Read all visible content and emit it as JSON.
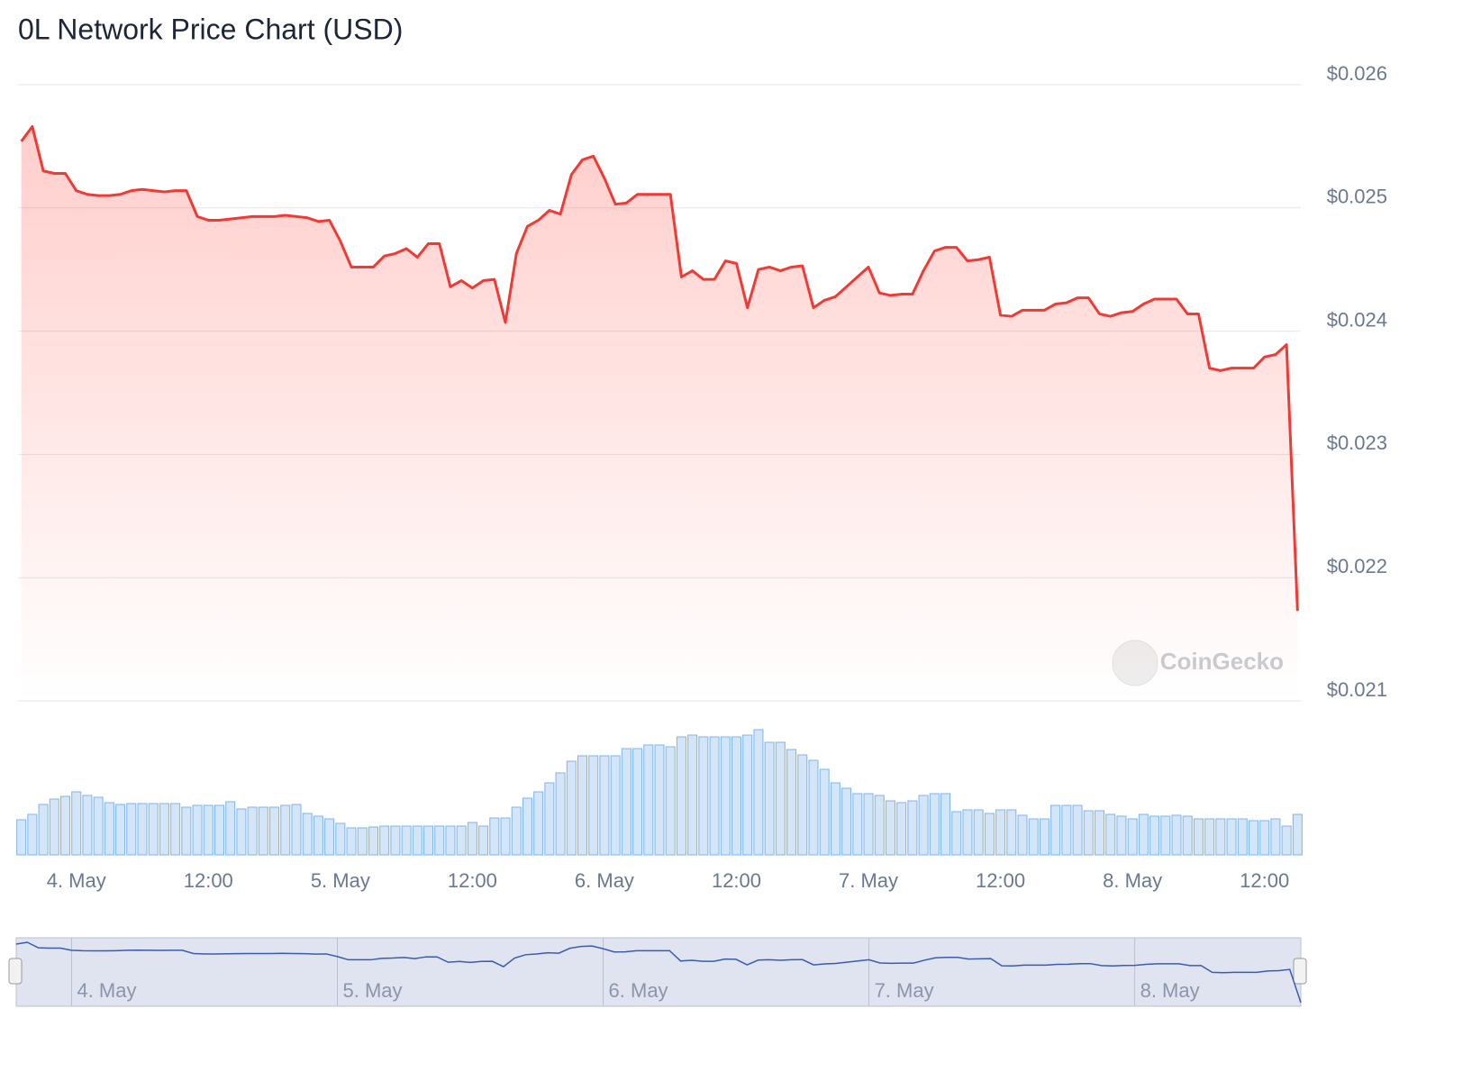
{
  "chart_data": {
    "type": "line",
    "title": "0L Network Price Chart (USD)",
    "watermark": "CoinGecko",
    "x": [
      -5,
      -4,
      -3,
      -2,
      -1,
      0,
      1,
      2,
      3,
      4,
      5,
      6,
      7,
      8,
      9,
      10,
      11,
      12,
      13,
      14,
      15,
      16,
      17,
      18,
      19,
      20,
      21,
      22,
      23,
      24,
      25,
      26,
      27,
      28,
      29,
      30,
      31,
      32,
      33,
      34,
      35,
      36,
      37,
      38,
      39,
      40,
      41,
      42,
      43,
      44,
      45,
      46,
      47,
      48,
      49,
      50,
      51,
      52,
      53,
      54,
      55,
      56,
      57,
      58,
      59,
      60,
      61,
      62,
      63,
      64,
      65,
      66,
      67,
      68,
      69,
      70,
      71,
      72,
      73,
      74,
      75,
      76,
      77,
      78,
      79,
      80,
      81,
      82,
      83,
      84,
      85,
      86,
      87,
      88,
      89,
      90,
      91,
      92,
      93,
      94,
      95,
      96,
      97,
      98,
      99,
      100,
      101,
      102,
      103,
      104,
      105,
      106,
      107,
      108,
      109,
      110,
      111
    ],
    "series": [
      {
        "color": "#f23a35",
        "values": [
          0.02554,
          0.02566,
          0.0253,
          0.02528,
          0.02528,
          0.02514,
          0.02511,
          0.0251,
          0.0251,
          0.02511,
          0.02514,
          0.02515,
          0.02514,
          0.02513,
          0.02514,
          0.02514,
          0.02493,
          0.0249,
          0.0249,
          0.02491,
          0.02492,
          0.02493,
          0.02493,
          0.02493,
          0.02494,
          0.02493,
          0.02492,
          0.02489,
          0.0249,
          0.02473,
          0.02452,
          0.02452,
          0.02452,
          0.02461,
          0.02463,
          0.02467,
          0.0246,
          0.02471,
          0.02471,
          0.02436,
          0.02441,
          0.02435,
          0.02441,
          0.02442,
          0.02407,
          0.02463,
          0.02485,
          0.0249,
          0.02498,
          0.02495,
          0.02527,
          0.02539,
          0.02542,
          0.02524,
          0.02503,
          0.02504,
          0.02511,
          0.02511,
          0.02511,
          0.02511,
          0.02444,
          0.02449,
          0.02442,
          0.02442,
          0.02457,
          0.02455,
          0.02419,
          0.0245,
          0.02452,
          0.02449,
          0.02452,
          0.02453,
          0.02419,
          0.02425,
          0.02428,
          0.02436,
          0.02444,
          0.02452,
          0.02431,
          0.02429,
          0.0243,
          0.0243,
          0.02449,
          0.02465,
          0.02468,
          0.02468,
          0.02457,
          0.02458,
          0.0246,
          0.02413,
          0.02412,
          0.02417,
          0.02417,
          0.02417,
          0.02422,
          0.02423,
          0.02427,
          0.02427,
          0.02414,
          0.02412,
          0.02415,
          0.02416,
          0.02422,
          0.02426,
          0.02426,
          0.02426,
          0.02414,
          0.02414,
          0.0237,
          0.02368,
          0.0237,
          0.0237,
          0.0237,
          0.02379,
          0.02381,
          0.02389,
          0.02173
        ]
      },
      {
        "type": "bar",
        "axis": "y2",
        "color": "#7cb5ec",
        "values": [
          39,
          45,
          56,
          62,
          65,
          70,
          66,
          64,
          58,
          56,
          57,
          57,
          57,
          57,
          57,
          53,
          55,
          55,
          55,
          59,
          51,
          53,
          53,
          53,
          55,
          56,
          46,
          43,
          40,
          35,
          30,
          30,
          31,
          32,
          32,
          32,
          32,
          32,
          32,
          32,
          32,
          36,
          32,
          41,
          41,
          53,
          63,
          70,
          80,
          91,
          104,
          110,
          110,
          110,
          110,
          118,
          118,
          122,
          122,
          120,
          131,
          133,
          131,
          131,
          131,
          131,
          133,
          139,
          125,
          125,
          117,
          111,
          105,
          95,
          80,
          74,
          68,
          68,
          66,
          60,
          58,
          60,
          66,
          68,
          68,
          48,
          50,
          50,
          46,
          50,
          50,
          44,
          40,
          40,
          55,
          55,
          55,
          49,
          49,
          45,
          43,
          40,
          45,
          43,
          43,
          44,
          43,
          40,
          40,
          40,
          40,
          40,
          38,
          38,
          40,
          32,
          45
        ]
      }
    ],
    "xlim": [
      -5.3,
      111.3
    ],
    "xticks": [
      {
        "value": 0,
        "label": "4. May"
      },
      {
        "value": 12,
        "label": "12:00"
      },
      {
        "value": 24,
        "label": "5. May"
      },
      {
        "value": 36,
        "label": "12:00"
      },
      {
        "value": 48,
        "label": "6. May"
      },
      {
        "value": 60,
        "label": "12:00"
      },
      {
        "value": 72,
        "label": "7. May"
      },
      {
        "value": 84,
        "label": "12:00"
      },
      {
        "value": 96,
        "label": "8. May"
      },
      {
        "value": 108,
        "label": "12:00"
      }
    ],
    "ylim": [
      0.021,
      0.026
    ],
    "yticks": [
      {
        "value": 0.021,
        "label": "$0.021"
      },
      {
        "value": 0.022,
        "label": "$0.022"
      },
      {
        "value": 0.023,
        "label": "$0.023"
      },
      {
        "value": 0.024,
        "label": "$0.024"
      },
      {
        "value": 0.025,
        "label": "$0.025"
      },
      {
        "value": 0.026,
        "label": "$0.026"
      }
    ],
    "y2lim": [
      0,
      140
    ],
    "grid": true,
    "navigator": true
  }
}
